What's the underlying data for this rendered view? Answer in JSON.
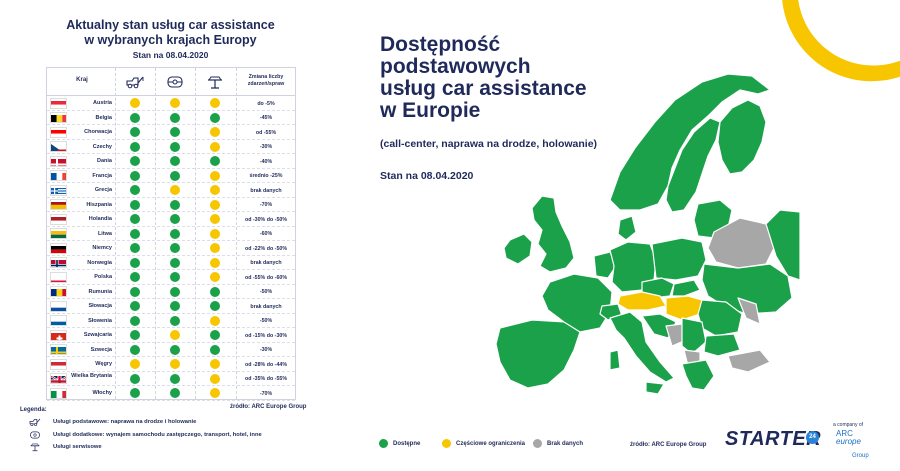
{
  "colors": {
    "available": "#1aa14a",
    "partial": "#f7c600",
    "none": "#a7a7a7",
    "navy": "#1f2a5a"
  },
  "table": {
    "title_line1": "Aktualny stan usług car assistance",
    "title_line2": "w wybranych krajach Europy",
    "date": "Stan na 08.04.2020",
    "col_country": "Kraj",
    "col_icons": [
      "tow-truck-icon",
      "steering-wheel-icon",
      "car-lift-icon"
    ],
    "col_change": "Zmiana liczby zdarzeń/spraw",
    "rows": [
      {
        "country": "Austria",
        "flag": "at",
        "s": [
          "yellow",
          "yellow",
          "yellow"
        ],
        "change": "do -5%"
      },
      {
        "country": "Belgia",
        "flag": "be",
        "s": [
          "green",
          "green",
          "green"
        ],
        "change": "-45%"
      },
      {
        "country": "Chorwacja",
        "flag": "hr",
        "s": [
          "green",
          "green",
          "yellow"
        ],
        "change": "od -55%"
      },
      {
        "country": "Czechy",
        "flag": "cz",
        "s": [
          "green",
          "green",
          "yellow"
        ],
        "change": "-30%"
      },
      {
        "country": "Dania",
        "flag": "dk",
        "s": [
          "green",
          "green",
          "green"
        ],
        "change": "-40%"
      },
      {
        "country": "Francja",
        "flag": "fr",
        "s": [
          "green",
          "green",
          "yellow"
        ],
        "change": "średnio -25%"
      },
      {
        "country": "Grecja",
        "flag": "gr",
        "s": [
          "green",
          "yellow",
          "yellow"
        ],
        "change": "brak danych"
      },
      {
        "country": "Hiszpania",
        "flag": "es",
        "s": [
          "green",
          "green",
          "yellow"
        ],
        "change": "-70%"
      },
      {
        "country": "Holandia",
        "flag": "nl",
        "s": [
          "green",
          "green",
          "yellow"
        ],
        "change": "od -30% do -50%"
      },
      {
        "country": "Litwa",
        "flag": "lt",
        "s": [
          "green",
          "green",
          "yellow"
        ],
        "change": "-60%"
      },
      {
        "country": "Niemcy",
        "flag": "de",
        "s": [
          "green",
          "green",
          "yellow"
        ],
        "change": "od -22% do -50%"
      },
      {
        "country": "Norwegia",
        "flag": "no",
        "s": [
          "green",
          "green",
          "yellow"
        ],
        "change": "brak danych"
      },
      {
        "country": "Polska",
        "flag": "pl",
        "s": [
          "green",
          "green",
          "yellow"
        ],
        "change": "od -55% do -60%"
      },
      {
        "country": "Rumunia",
        "flag": "ro",
        "s": [
          "green",
          "green",
          "green"
        ],
        "change": "-50%"
      },
      {
        "country": "Słowacja",
        "flag": "sk",
        "s": [
          "green",
          "green",
          "green"
        ],
        "change": "brak danych"
      },
      {
        "country": "Słowenia",
        "flag": "si",
        "s": [
          "green",
          "green",
          "yellow"
        ],
        "change": "-50%"
      },
      {
        "country": "Szwajcaria",
        "flag": "ch",
        "s": [
          "green",
          "yellow",
          "green"
        ],
        "change": "od -15% do -30%"
      },
      {
        "country": "Szwecja",
        "flag": "se",
        "s": [
          "green",
          "green",
          "green"
        ],
        "change": "-30%"
      },
      {
        "country": "Węgry",
        "flag": "hu",
        "s": [
          "yellow",
          "yellow",
          "yellow"
        ],
        "change": "od -28% do -44%"
      },
      {
        "country": "Wielka Brytania",
        "flag": "gb",
        "s": [
          "green",
          "green",
          "yellow"
        ],
        "change": "od -35% do -55%"
      },
      {
        "country": "Włochy",
        "flag": "it",
        "s": [
          "green",
          "green",
          "yellow"
        ],
        "change": "-70%"
      }
    ],
    "source": "źródło: ARC Europe Group"
  },
  "legend": {
    "title": "Legenda:",
    "items": [
      {
        "icon": "tow-truck-icon",
        "text": "Usługi podstawowe: naprawa na drodze i holowanie"
      },
      {
        "icon": "steering-wheel-icon",
        "text": "Usługi dodatkowe: wynajem samochodu zastępczego, transport, hotel, inne"
      },
      {
        "icon": "car-lift-icon",
        "text": "Usługi serwisowe"
      }
    ]
  },
  "map": {
    "title_line1": "Dostępność",
    "title_line2": "podstawowych",
    "title_line3": "usług car assistance",
    "title_line4": "w Europie",
    "subtitle": "(call-center, naprawa na drodze, holowanie)",
    "date": "Stan na 08.04.2020",
    "legend_available": "Dostępne",
    "legend_partial": "Częściowe ograniczenia",
    "legend_none": "Brak danych",
    "source": "źródło: ARC Europe Group"
  },
  "logos": {
    "starter": "STARTER",
    "starter_badge": "24",
    "a_company_of": "a company of",
    "arc_line1": "ARC",
    "arc_line2": "europe",
    "arc_line3": "Group"
  }
}
